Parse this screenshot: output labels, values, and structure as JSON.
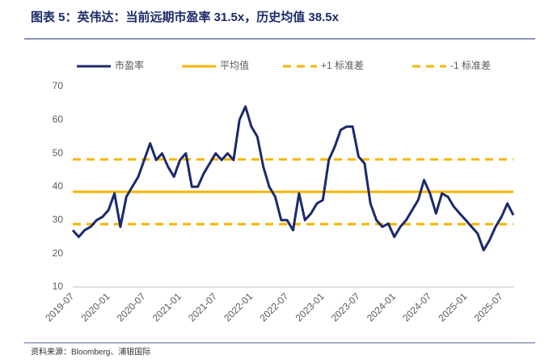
{
  "chart_data": {
    "type": "line",
    "title": "图表 5：英伟达：当前远期市盈率 31.5x，历史均值 38.5x",
    "source": "资料来源：Bloomberg、浦银国际",
    "categories": [
      "2019-07",
      null,
      null,
      null,
      null,
      null,
      "2020-01",
      null,
      null,
      null,
      null,
      null,
      "2020-07",
      null,
      null,
      null,
      null,
      null,
      "2021-01",
      null,
      null,
      null,
      null,
      null,
      "2021-07",
      null,
      null,
      null,
      null,
      null,
      "2022-01",
      null,
      null,
      null,
      null,
      null,
      "2022-07",
      null,
      null,
      null,
      null,
      null,
      "2023-01",
      null,
      null,
      null,
      null,
      null,
      "2023-07",
      null,
      null,
      null,
      null,
      null,
      "2024-01",
      null,
      null,
      null,
      null,
      null,
      "2024-07",
      null,
      null,
      null,
      null,
      null,
      "2025-01",
      null,
      null,
      null,
      null,
      null,
      "2025-07",
      null,
      null
    ],
    "series": [
      {
        "name": "市盈率",
        "color": "#1b2a6b",
        "values": [
          27,
          25,
          27,
          28,
          30,
          31,
          33,
          38,
          28,
          37,
          40,
          43,
          48,
          53,
          48,
          50,
          46,
          43,
          48,
          50,
          40,
          40,
          44,
          47,
          50,
          48,
          50,
          48,
          60,
          64,
          58,
          55,
          46,
          40,
          37,
          30,
          30,
          27,
          38,
          30,
          32,
          35,
          36,
          48,
          52,
          57,
          58,
          58,
          49,
          47,
          35,
          30,
          28,
          29,
          25,
          28,
          30,
          33,
          36,
          42,
          38,
          32,
          38,
          37,
          34,
          32,
          30,
          28,
          26,
          21,
          24,
          28,
          31,
          35,
          31.5
        ]
      }
    ],
    "reference_lines": [
      {
        "name": "平均值",
        "value": 38.5,
        "color": "#f7b500",
        "dash": false
      },
      {
        "name": "+1 标准差",
        "value": 48.2,
        "color": "#f7b500",
        "dash": true
      },
      {
        "name": "-1 标准差",
        "value": 28.8,
        "color": "#f7b500",
        "dash": true
      }
    ],
    "ylim": [
      10,
      70
    ],
    "yticks": [
      10,
      20,
      30,
      40,
      50,
      60,
      70
    ],
    "grid": false
  }
}
